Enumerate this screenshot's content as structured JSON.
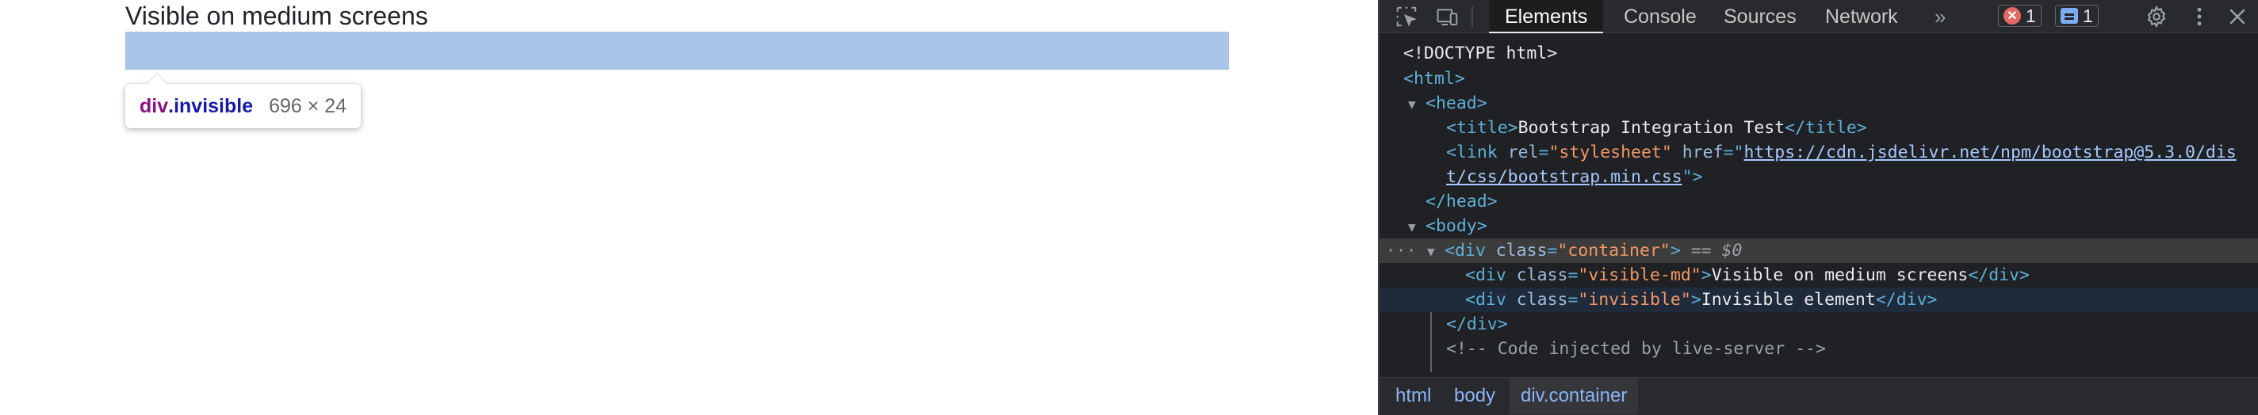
{
  "page": {
    "heading": "Visible on medium screens",
    "tooltip": {
      "tag": "div",
      "class_name": ".invisible",
      "dimensions": "696 × 24"
    }
  },
  "devtools": {
    "tabs": [
      "Elements",
      "Console",
      "Sources",
      "Network"
    ],
    "active_tab": "Elements",
    "more_tabs": "»",
    "errors_count": "1",
    "messages_count": "1",
    "dom": {
      "doctype": "<!DOCTYPE html>",
      "html_open": "<html>",
      "head_open": "<head>",
      "title_open": "<title>",
      "title_text": "Bootstrap Integration Test",
      "title_close": "</title>",
      "link_open": "<link",
      "attr_rel": "rel",
      "val_rel": "\"stylesheet\"",
      "attr_href": "href",
      "href_q": "=\"",
      "href_part1": "https://cdn.jsdelivr.net/npm/bootstrap@5.3.0/dis",
      "href_part2": "t/css/bootstrap.min.css",
      "href_end": "\">",
      "head_close": "</head>",
      "body_open": "<body>",
      "div_open": "<div",
      "attr_class": "class",
      "val_container": "\"container\"",
      "gt": ">",
      "eq_marker": "== $0",
      "val_visible_md": "\"visible-md\"",
      "visible_md_text": "Visible on medium screens",
      "div_close": "</div>",
      "val_invisible": "\"invisible\"",
      "invisible_text": "Invisible element",
      "comment": "<!-- Code injected by live-server -->",
      "ellipsis": "···"
    },
    "breadcrumbs": [
      "html",
      "body",
      "div.container"
    ]
  },
  "colors": {
    "highlight": "#a8c5e8",
    "devtools_bg": "#202124",
    "tag_color": "#5db0d7",
    "attr_value_color": "#f29766"
  }
}
